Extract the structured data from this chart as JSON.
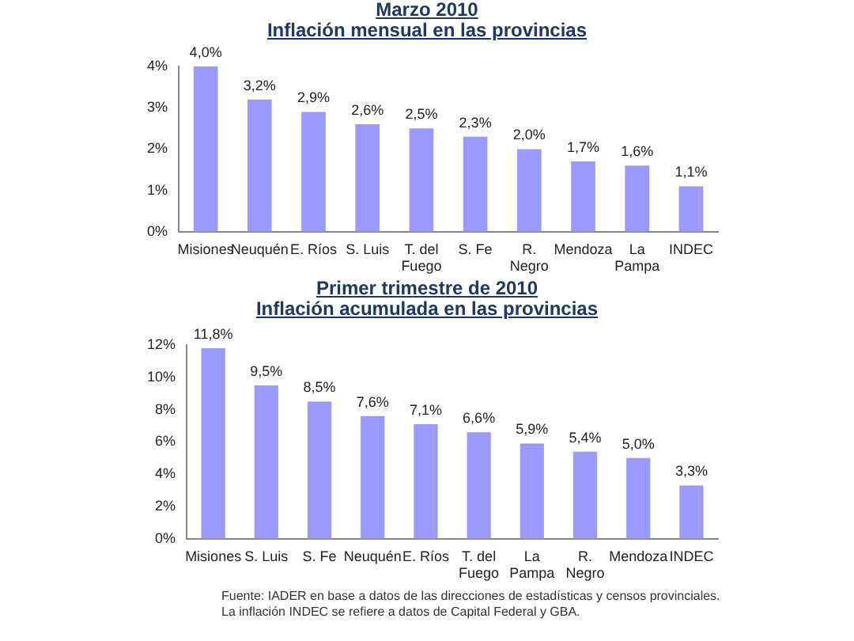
{
  "chart_data": [
    {
      "type": "bar",
      "title": "Marzo 2010",
      "subtitle": "Inflación mensual en las provincias",
      "categories": [
        "Misiones",
        "Neuquén",
        "E. Ríos",
        "S. Luis",
        "T. del Fuego",
        "S. Fe",
        "R. Negro",
        "Mendoza",
        "La Pampa",
        "INDEC"
      ],
      "values": [
        4.0,
        3.2,
        2.9,
        2.6,
        2.5,
        2.3,
        2.0,
        1.7,
        1.6,
        1.1
      ],
      "value_labels": [
        "4,0%",
        "3,2%",
        "2,9%",
        "2,6%",
        "2,5%",
        "2,3%",
        "2,0%",
        "1,7%",
        "1,6%",
        "1,1%"
      ],
      "color": "#9999ff",
      "ylim": [
        0,
        4
      ],
      "yticks": [
        {
          "value": 0,
          "label": "0%"
        },
        {
          "value": 1,
          "label": "1%"
        },
        {
          "value": 2,
          "label": "2%"
        },
        {
          "value": 3,
          "label": "3%"
        },
        {
          "value": 4,
          "label": "4%"
        }
      ],
      "grid": false
    },
    {
      "type": "bar",
      "title": "Primer trimestre de 2010",
      "subtitle": "Inflación acumulada en las provincias",
      "categories": [
        "Misiones",
        "S. Luis",
        "S. Fe",
        "Neuquén",
        "E. Ríos",
        "T. del Fuego",
        "La Pampa",
        "R. Negro",
        "Mendoza",
        "INDEC"
      ],
      "values": [
        11.8,
        9.5,
        8.5,
        7.6,
        7.1,
        6.6,
        5.9,
        5.4,
        5.0,
        3.3
      ],
      "value_labels": [
        "11,8%",
        "9,5%",
        "8,5%",
        "7,6%",
        "7,1%",
        "6,6%",
        "5,9%",
        "5,4%",
        "5,0%",
        "3,3%"
      ],
      "color": "#9999ff",
      "ylim": [
        0,
        12
      ],
      "yticks": [
        {
          "value": 0,
          "label": "0%"
        },
        {
          "value": 2,
          "label": "2%"
        },
        {
          "value": 4,
          "label": "4%"
        },
        {
          "value": 6,
          "label": "6%"
        },
        {
          "value": 8,
          "label": "8%"
        },
        {
          "value": 10,
          "label": "10%"
        },
        {
          "value": 12,
          "label": "12%"
        }
      ],
      "grid": false,
      "annotations": [
        "Fuente: IADER en base a datos de las direcciones de estadísticas y censos provinciales.",
        "La inflación INDEC se refiere a datos de Capital Federal y GBA."
      ]
    }
  ]
}
